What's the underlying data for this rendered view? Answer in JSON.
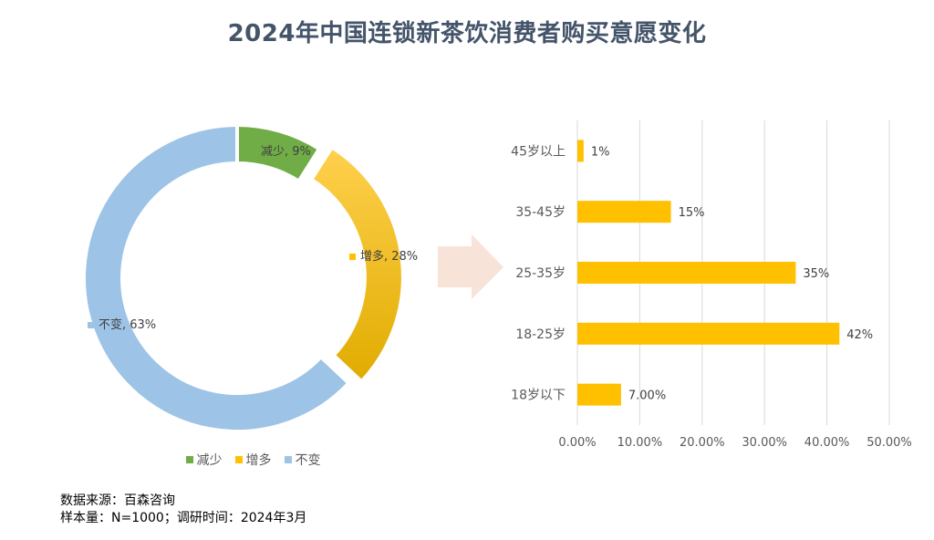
{
  "title": "2024年中国连锁新茶饮消费者购买意愿变化",
  "chart_data": [
    {
      "type": "pie",
      "subtype": "donut",
      "categories": [
        "减少",
        "增多",
        "不变"
      ],
      "values": [
        9,
        28,
        63
      ],
      "data_labels": [
        "减少, 9%",
        "增多, 28%",
        "不变, 63%"
      ],
      "colors": [
        "#70AD47",
        "#FFC000",
        "#9DC3E6"
      ],
      "legend": [
        "减少",
        "增多",
        "不变"
      ],
      "legend_position": "bottom",
      "exploded": "增多"
    },
    {
      "type": "bar",
      "orientation": "horizontal",
      "categories": [
        "45岁以上",
        "35-45岁",
        "25-35岁",
        "18-25岁",
        "18岁以下"
      ],
      "values": [
        1,
        15,
        35,
        42,
        7
      ],
      "data_labels": [
        "1%",
        "15%",
        "35%",
        "42%",
        "7.00%"
      ],
      "xlim": [
        0,
        50
      ],
      "xticks": [
        "0.00%",
        "10.00%",
        "20.00%",
        "30.00%",
        "40.00%",
        "50.00%"
      ],
      "color": "#FFC000",
      "grid": true
    }
  ],
  "arrow_color": "#F8E3D8",
  "footer": {
    "source": "数据来源：百森咨询",
    "sample": "样本量：N=1000；调研时间：2024年3月"
  }
}
